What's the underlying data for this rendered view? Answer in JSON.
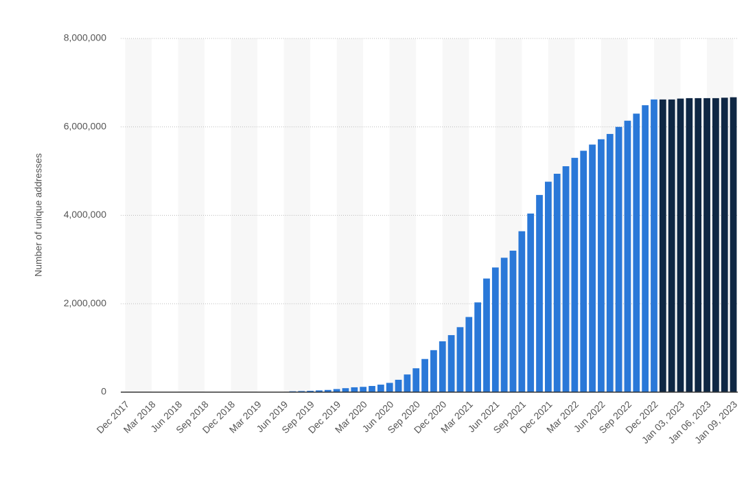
{
  "chart_data": {
    "type": "bar",
    "y_label": "Number of unique addresses",
    "categories": [
      "Dec 2017",
      null,
      null,
      "Mar 2018",
      null,
      null,
      "Jun 2018",
      null,
      null,
      "Sep 2018",
      null,
      null,
      "Dec 2018",
      null,
      null,
      "Mar 2019",
      null,
      null,
      "Jun 2019",
      null,
      null,
      "Sep 2019",
      null,
      null,
      "Dec 2019",
      null,
      null,
      "Mar 2020",
      null,
      null,
      "Jun 2020",
      null,
      null,
      "Sep 2020",
      null,
      null,
      "Dec 2020",
      null,
      null,
      "Mar 2021",
      null,
      null,
      "Jun 2021",
      null,
      null,
      "Sep 2021",
      null,
      null,
      "Dec 2021",
      null,
      null,
      "Mar 2022",
      null,
      null,
      "Jun 2022",
      null,
      null,
      "Sep 2022",
      null,
      null,
      "Dec 2022",
      null,
      null,
      "Jan 03, 2023",
      null,
      null,
      "Jan 06, 2023",
      null,
      null,
      "Jan 09, 2023"
    ],
    "values": [
      0,
      0,
      0,
      0,
      0,
      0,
      0,
      0,
      0,
      0,
      0,
      0,
      0,
      0,
      0,
      0,
      0,
      0,
      0,
      20000,
      25000,
      30000,
      40000,
      50000,
      70000,
      90000,
      110000,
      120000,
      140000,
      170000,
      210000,
      280000,
      400000,
      540000,
      750000,
      950000,
      1150000,
      1290000,
      1470000,
      1700000,
      2030000,
      2570000,
      2820000,
      3040000,
      3200000,
      3640000,
      4040000,
      4460000,
      4760000,
      4940000,
      5110000,
      5300000,
      5460000,
      5600000,
      5720000,
      5840000,
      6000000,
      6140000,
      6300000,
      6490000,
      6620000,
      6620000,
      6620000,
      6640000,
      6650000,
      6650000,
      6650000,
      6650000,
      6660000,
      6670000
    ],
    "colors": [
      "#2a78d8",
      "#2a78d8",
      "#2a78d8",
      "#2a78d8",
      "#2a78d8",
      "#2a78d8",
      "#2a78d8",
      "#2a78d8",
      "#2a78d8",
      "#2a78d8",
      "#2a78d8",
      "#2a78d8",
      "#2a78d8",
      "#2a78d8",
      "#2a78d8",
      "#2a78d8",
      "#2a78d8",
      "#2a78d8",
      "#2a78d8",
      "#2a78d8",
      "#2a78d8",
      "#2a78d8",
      "#2a78d8",
      "#2a78d8",
      "#2a78d8",
      "#2a78d8",
      "#2a78d8",
      "#2a78d8",
      "#2a78d8",
      "#2a78d8",
      "#2a78d8",
      "#2a78d8",
      "#2a78d8",
      "#2a78d8",
      "#2a78d8",
      "#2a78d8",
      "#2a78d8",
      "#2a78d8",
      "#2a78d8",
      "#2a78d8",
      "#2a78d8",
      "#2a78d8",
      "#2a78d8",
      "#2a78d8",
      "#2a78d8",
      "#2a78d8",
      "#2a78d8",
      "#2a78d8",
      "#2a78d8",
      "#2a78d8",
      "#2a78d8",
      "#2a78d8",
      "#2a78d8",
      "#2a78d8",
      "#2a78d8",
      "#2a78d8",
      "#2a78d8",
      "#2a78d8",
      "#2a78d8",
      "#2a78d8",
      "#2a78d8",
      "#0f2744",
      "#0f2744",
      "#0f2744",
      "#0f2744",
      "#0f2744",
      "#0f2744",
      "#0f2744",
      "#0f2744",
      "#0f2744"
    ],
    "ylim": [
      0,
      8000000
    ],
    "yticks": [
      0,
      {
        "value": 2000000,
        "label": "2,000,000"
      },
      {
        "value": 4000000,
        "label": "4,000,000"
      },
      {
        "value": 6000000,
        "label": "6,000,000"
      },
      {
        "value": 8000000,
        "label": "8,000,000"
      }
    ],
    "grid": true
  }
}
